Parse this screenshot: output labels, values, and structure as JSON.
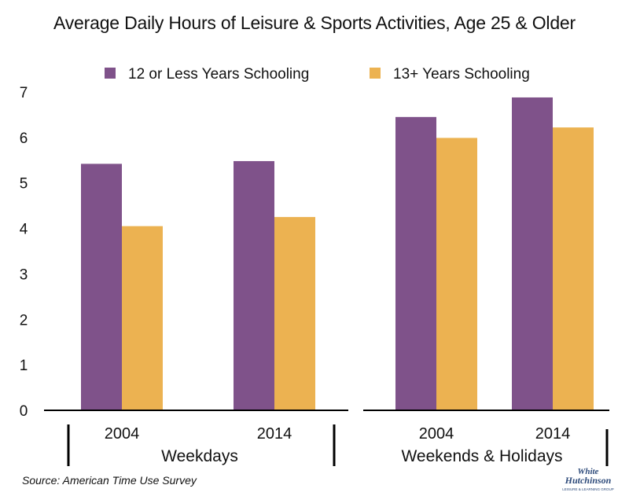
{
  "chart_data": {
    "type": "bar",
    "title": "Average Daily Hours of Leisure & Sports Activities, Age 25 & Older",
    "categories": [
      "2004",
      "2014",
      "2004",
      "2014"
    ],
    "groups": [
      {
        "label": "Weekdays",
        "categories": [
          "2004",
          "2014"
        ]
      },
      {
        "label": "Weekends & Holidays",
        "categories": [
          "2004",
          "2014"
        ]
      }
    ],
    "series": [
      {
        "name": "12 or Less Years Schooling",
        "color": "#7f528a",
        "values": [
          5.42,
          5.48,
          6.45,
          6.88
        ]
      },
      {
        "name": "13+ Years Schooling",
        "color": "#ecb251",
        "values": [
          4.05,
          4.25,
          5.99,
          6.22
        ]
      }
    ],
    "ylim": [
      0,
      7
    ],
    "yticks": [
      "0",
      "1",
      "2",
      "3",
      "4",
      "5",
      "6",
      "7"
    ],
    "grid": false,
    "legend_position": "top",
    "source": "Source: American Time Use Survey"
  },
  "logo": {
    "line1": "White",
    "line2": "Hutchinson",
    "line3": "LEISURE & LEARNING GROUP"
  }
}
